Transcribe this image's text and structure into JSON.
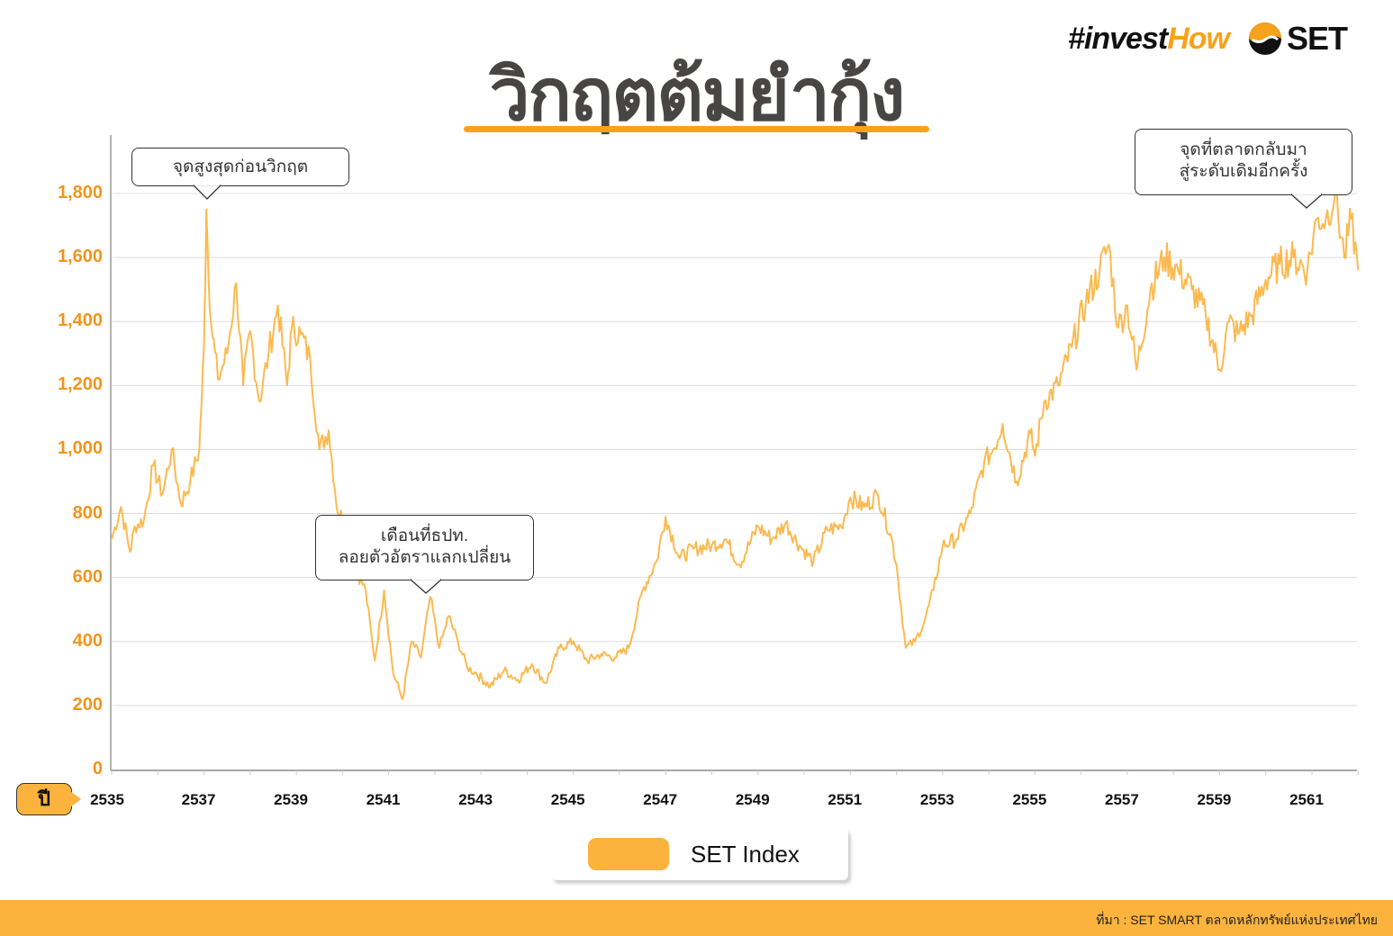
{
  "brand": {
    "hashtag_prefix": "#invest",
    "hashtag_suffix": "How",
    "logo_text": "SET",
    "accent_color": "#f7a21b"
  },
  "title": "วิกฤตต้มยำกุ้ง",
  "annotations": {
    "peak_before_crisis": "จุดสูงสุดก่อนวิกฤต",
    "float_baht_line1": "เดือนที่ธปท.",
    "float_baht_line2": "ลอยตัวอัตราแลกเปลี่ยน",
    "recovery_line1": "จุดที่ตลาดกลับมา",
    "recovery_line2": "สู่ระดับเดิมอีกครั้ง"
  },
  "axis": {
    "x_badge": "ปี",
    "y_ticks": [
      "0",
      "200",
      "400",
      "600",
      "800",
      "1,000",
      "1,200",
      "1,400",
      "1,600",
      "1,800"
    ],
    "x_ticks": [
      "2535",
      "2537",
      "2539",
      "2541",
      "2543",
      "2545",
      "2547",
      "2549",
      "2551",
      "2553",
      "2555",
      "2557",
      "2559",
      "2561"
    ]
  },
  "legend": {
    "label": "SET Index",
    "color": "#fbb33d"
  },
  "footer": {
    "source": "ที่มา : SET SMART ตลาดหลักทรัพย์แห่งประเทศไทย"
  },
  "chart_data": {
    "type": "line",
    "title": "วิกฤตต้มยำกุ้ง",
    "xlabel": "ปี",
    "ylabel": "",
    "ylim": [
      0,
      1900
    ],
    "xlim": [
      2535,
      2562
    ],
    "grid": true,
    "legend_position": "bottom",
    "series": [
      {
        "name": "SET Index",
        "color": "#fbb33d",
        "x": [
          2535.0,
          2535.2,
          2535.4,
          2535.5,
          2535.7,
          2535.9,
          2536.1,
          2536.3,
          2536.5,
          2536.7,
          2536.9,
          2537.0,
          2537.05,
          2537.15,
          2537.3,
          2537.5,
          2537.7,
          2537.85,
          2538.0,
          2538.2,
          2538.4,
          2538.6,
          2538.8,
          2538.9,
          2539.1,
          2539.3,
          2539.5,
          2539.7,
          2539.9,
          2540.1,
          2540.3,
          2540.5,
          2540.7,
          2540.9,
          2541.1,
          2541.3,
          2541.5,
          2541.7,
          2541.9,
          2542.1,
          2542.3,
          2542.5,
          2542.7,
          2542.9,
          2543.2,
          2543.5,
          2543.8,
          2544.1,
          2544.4,
          2544.7,
          2545.0,
          2545.3,
          2545.6,
          2545.9,
          2546.2,
          2546.5,
          2546.8,
          2547.0,
          2547.3,
          2547.6,
          2548.0,
          2548.3,
          2548.6,
          2549.0,
          2549.3,
          2549.6,
          2549.9,
          2550.2,
          2550.5,
          2550.8,
          2551.0,
          2551.3,
          2551.6,
          2551.9,
          2552.0,
          2552.2,
          2552.4,
          2552.6,
          2552.8,
          2553.0,
          2553.3,
          2553.6,
          2553.9,
          2554.1,
          2554.3,
          2554.6,
          2554.9,
          2555.0,
          2555.2,
          2555.5,
          2555.8,
          2556.1,
          2556.4,
          2556.6,
          2556.8,
          2557.0,
          2557.2,
          2557.5,
          2557.8,
          2558.1,
          2558.4,
          2558.7,
          2559.0,
          2559.2,
          2559.4,
          2559.7,
          2560.0,
          2560.3,
          2560.6,
          2560.9,
          2561.1,
          2561.3,
          2561.5,
          2561.7,
          2561.85,
          2562.0
        ],
        "values": [
          720,
          820,
          680,
          760,
          780,
          950,
          860,
          1000,
          830,
          900,
          1000,
          1320,
          1750,
          1400,
          1220,
          1300,
          1520,
          1200,
          1370,
          1150,
          1300,
          1450,
          1200,
          1380,
          1360,
          1280,
          1000,
          1060,
          800,
          780,
          620,
          560,
          340,
          560,
          300,
          220,
          400,
          350,
          540,
          380,
          480,
          400,
          320,
          300,
          260,
          310,
          280,
          330,
          270,
          380,
          400,
          340,
          360,
          350,
          380,
          560,
          650,
          790,
          660,
          690,
          700,
          720,
          640,
          760,
          720,
          770,
          700,
          650,
          750,
          760,
          850,
          820,
          860,
          720,
          640,
          380,
          400,
          460,
          560,
          700,
          720,
          800,
          960,
          1000,
          1080,
          900,
          1050,
          980,
          1150,
          1200,
          1320,
          1460,
          1560,
          1640,
          1380,
          1450,
          1250,
          1500,
          1600,
          1560,
          1500,
          1420,
          1250,
          1400,
          1360,
          1420,
          1530,
          1580,
          1600,
          1560,
          1720,
          1720,
          1800,
          1600,
          1720,
          1560
        ]
      }
    ]
  }
}
